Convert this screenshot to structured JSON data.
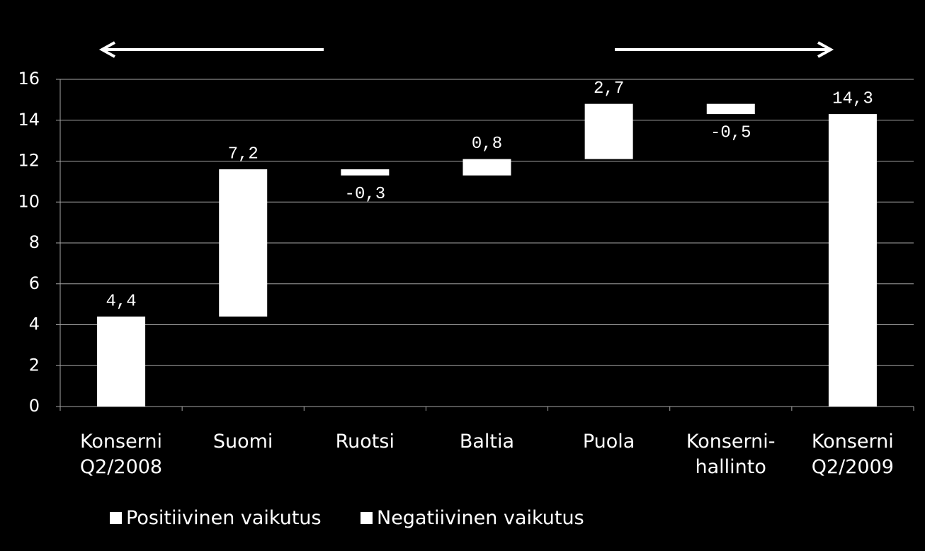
{
  "chart_data": {
    "type": "waterfall",
    "categories": [
      "Konserni\nQ2/2008",
      "Suomi",
      "Ruotsi",
      "Baltia",
      "Puola",
      "Konserni-\nhallinto",
      "Konserni\nQ2/2009"
    ],
    "values": [
      4.4,
      7.2,
      -0.3,
      0.8,
      2.7,
      -0.5,
      14.3
    ],
    "value_labels": [
      "4,4",
      "7,2",
      "-0,3",
      "0,8",
      "2,7",
      "-0,5",
      "14,3"
    ],
    "is_total": [
      true,
      false,
      false,
      false,
      false,
      false,
      true
    ],
    "color": "#ffffff",
    "legend": [
      {
        "name": "Positiivinen vaikutus",
        "color": "#ffffff"
      },
      {
        "name": "Negatiivinen vaikutus",
        "color": "#ffffff"
      }
    ],
    "ylim": [
      0,
      16
    ],
    "yticks": [
      0,
      2,
      4,
      6,
      8,
      10,
      12,
      14,
      16
    ],
    "grid": true
  }
}
